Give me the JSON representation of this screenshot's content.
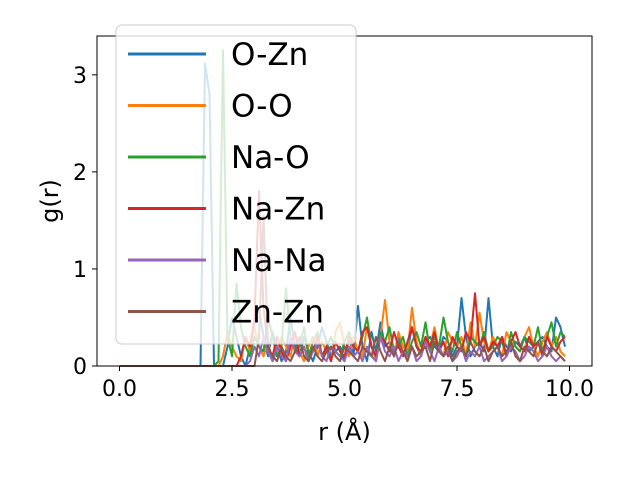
{
  "chart_data": {
    "type": "line",
    "title": "",
    "xlabel": "r (Å)",
    "ylabel": "g(r)",
    "xlim": [
      -0.5,
      10.5
    ],
    "ylim": [
      0,
      3.4
    ],
    "xticks": [
      0.0,
      2.5,
      5.0,
      7.5,
      10.0
    ],
    "xtick_labels": [
      "0.0",
      "2.5",
      "5.0",
      "7.5",
      "10.0"
    ],
    "yticks": [
      0,
      1,
      2,
      3
    ],
    "ytick_labels": [
      "0",
      "1",
      "2",
      "3"
    ],
    "grid": false,
    "legend_position": "top-left",
    "x": [
      0.0,
      0.1,
      0.2,
      0.3,
      0.4,
      0.5,
      0.6,
      0.7,
      0.8,
      0.9,
      1.0,
      1.1,
      1.2,
      1.3,
      1.4,
      1.5,
      1.6,
      1.7,
      1.8,
      1.9,
      2.0,
      2.1,
      2.2,
      2.3,
      2.4,
      2.5,
      2.6,
      2.7,
      2.8,
      2.9,
      3.0,
      3.1,
      3.2,
      3.3,
      3.4,
      3.5,
      3.6,
      3.7,
      3.8,
      3.9,
      4.0,
      4.1,
      4.2,
      4.3,
      4.4,
      4.5,
      4.6,
      4.7,
      4.8,
      4.9,
      5.0,
      5.1,
      5.2,
      5.3,
      5.4,
      5.5,
      5.6,
      5.7,
      5.8,
      5.9,
      6.0,
      6.1,
      6.2,
      6.3,
      6.4,
      6.5,
      6.6,
      6.7,
      6.8,
      6.9,
      7.0,
      7.1,
      7.2,
      7.3,
      7.4,
      7.5,
      7.6,
      7.7,
      7.8,
      7.9,
      8.0,
      8.1,
      8.2,
      8.3,
      8.4,
      8.5,
      8.6,
      8.7,
      8.8,
      8.9,
      9.0,
      9.1,
      9.2,
      9.3,
      9.4,
      9.5,
      9.6,
      9.7,
      9.8,
      9.9
    ],
    "series": [
      {
        "name": "O-Zn",
        "color": "#1f77b4",
        "values": [
          0,
          0,
          0,
          0,
          0,
          0,
          0,
          0,
          0,
          0,
          0,
          0,
          0,
          0,
          0,
          0,
          0,
          0,
          0,
          3.12,
          2.8,
          0,
          0,
          0,
          0.2,
          0.5,
          0.3,
          0.1,
          0,
          0.2,
          0.45,
          0.6,
          0.3,
          0.1,
          0.35,
          0.2,
          0.05,
          0.15,
          0.5,
          0.2,
          0.1,
          0.3,
          0.15,
          0.05,
          0.2,
          0.4,
          0.25,
          0.1,
          0.15,
          0.2,
          0.05,
          0.3,
          0.1,
          0.62,
          0.2,
          0.05,
          0.35,
          0.15,
          0.45,
          0.2,
          0.25,
          0.1,
          0.3,
          0.2,
          0.15,
          0.4,
          0.2,
          0.1,
          0.25,
          0.3,
          0.2,
          0.15,
          0.3,
          0.25,
          0.1,
          0.2,
          0.7,
          0.3,
          0.1,
          0.2,
          0.25,
          0.15,
          0.7,
          0.2,
          0.1,
          0.3,
          0.2,
          0.15,
          0.25,
          0.2,
          0.3,
          0.15,
          0.2,
          0.25,
          0.3,
          0.2,
          0.15,
          0.5,
          0.4,
          0.2
        ]
      },
      {
        "name": "O-O",
        "color": "#ff7f0e",
        "values": [
          0,
          0,
          0,
          0,
          0,
          0,
          0,
          0,
          0,
          0,
          0,
          0,
          0,
          0,
          0,
          0,
          0,
          0,
          0,
          0,
          0,
          0,
          0,
          0.1,
          0.35,
          0.2,
          0.1,
          0.05,
          0.3,
          0.15,
          0.4,
          0.2,
          0.1,
          0.25,
          0.05,
          0.15,
          0.3,
          0.2,
          0.1,
          0.35,
          0.15,
          0.05,
          0.2,
          0.3,
          0.1,
          0.25,
          0.15,
          0.05,
          0.35,
          0.45,
          0.2,
          0.1,
          0.3,
          0.15,
          0.1,
          0.4,
          0.2,
          0.05,
          0.3,
          0.68,
          0.25,
          0.1,
          0.35,
          0.2,
          0.15,
          0.6,
          0.25,
          0.1,
          0.3,
          0.2,
          0.4,
          0.15,
          0.1,
          0.35,
          0.25,
          0.2,
          0.3,
          0.1,
          0.45,
          0.2,
          0.55,
          0.25,
          0.15,
          0.3,
          0.2,
          0.1,
          0.35,
          0.25,
          0.2,
          0.15,
          0.3,
          0.4,
          0.2,
          0.1,
          0.25,
          0.35,
          0.2,
          0.3,
          0.15,
          0.1
        ]
      },
      {
        "name": "Na-O",
        "color": "#2ca02c",
        "values": [
          0,
          0,
          0,
          0,
          0,
          0,
          0,
          0,
          0,
          0,
          0,
          0,
          0,
          0,
          0,
          0,
          0,
          0,
          0,
          0,
          0,
          0,
          0.05,
          3.25,
          0.3,
          0.1,
          0.85,
          0.4,
          0.2,
          0.1,
          0.3,
          0.2,
          0.15,
          0.5,
          0.3,
          0.1,
          0.2,
          0.8,
          0.3,
          0.15,
          0.2,
          0.4,
          0.1,
          0.25,
          0.35,
          0.1,
          0.2,
          0.3,
          0.15,
          0.1,
          0.25,
          0.35,
          0.2,
          0.15,
          0.3,
          0.5,
          0.2,
          0.1,
          0.35,
          0.25,
          0.4,
          0.15,
          0.2,
          0.3,
          0.1,
          0.25,
          0.35,
          0.2,
          0.45,
          0.15,
          0.3,
          0.2,
          0.5,
          0.25,
          0.15,
          0.35,
          0.2,
          0.1,
          0.3,
          0.25,
          0.2,
          0.35,
          0.15,
          0.2,
          0.3,
          0.25,
          0.1,
          0.35,
          0.2,
          0.15,
          0.3,
          0.25,
          0.2,
          0.4,
          0.15,
          0.3,
          0.45,
          0.2,
          0.35,
          0.3
        ]
      },
      {
        "name": "Na-Zn",
        "color": "#d62728",
        "values": [
          0,
          0,
          0,
          0,
          0,
          0,
          0,
          0,
          0,
          0,
          0,
          0,
          0,
          0,
          0,
          0,
          0,
          0,
          0,
          0,
          0,
          0,
          0,
          0,
          0,
          0,
          0,
          0.1,
          0.3,
          0.2,
          0.5,
          1.8,
          0.6,
          0.2,
          0.1,
          0.3,
          0.15,
          0.05,
          0.2,
          0.35,
          0.1,
          0.2,
          0.05,
          0.15,
          0.3,
          0.1,
          0.2,
          0.05,
          0.25,
          0.15,
          0.1,
          0.3,
          0.2,
          0.15,
          0.35,
          0.4,
          0.2,
          0.1,
          0.3,
          0.25,
          0.15,
          0.35,
          0.2,
          0.1,
          0.25,
          0.4,
          0.2,
          0.15,
          0.3,
          0.2,
          0.35,
          0.15,
          0.25,
          0.1,
          0.3,
          0.2,
          0.15,
          0.35,
          0.25,
          0.75,
          0.2,
          0.3,
          0.15,
          0.25,
          0.2,
          0.3,
          0.1,
          0.25,
          0.35,
          0.2,
          0.15,
          0.3,
          0.2,
          0.25,
          0.1,
          0.3,
          0.2,
          0.15,
          0.25,
          0.3
        ]
      },
      {
        "name": "Na-Na",
        "color": "#9467bd",
        "values": [
          0,
          0,
          0,
          0,
          0,
          0,
          0,
          0,
          0,
          0,
          0,
          0,
          0,
          0,
          0,
          0,
          0,
          0,
          0,
          0,
          0,
          0,
          0,
          0,
          0,
          0,
          0,
          0,
          0,
          0.05,
          0.2,
          0.1,
          0.3,
          0.15,
          0.05,
          0.2,
          0.1,
          0.05,
          0.3,
          0.15,
          0.1,
          0.2,
          0.05,
          0.15,
          0.25,
          0.1,
          0.05,
          0.2,
          0.15,
          0.1,
          0.05,
          0.2,
          0.1,
          0.15,
          0.05,
          0.2,
          0.1,
          0.05,
          0.3,
          0.15,
          0.1,
          0.2,
          0.05,
          0.15,
          0.1,
          0.2,
          0.05,
          0.1,
          0.25,
          0.15,
          0.05,
          0.2,
          0.1,
          0.15,
          0.05,
          0.1,
          0.2,
          0.05,
          0.15,
          0.1,
          0.2,
          0.05,
          0.1,
          0.15,
          0.2,
          0.05,
          0.1,
          0.2,
          0.15,
          0.05,
          0.1,
          0.2,
          0.15,
          0.05,
          0.1,
          0.2,
          0.1,
          0.05,
          0.1,
          0.05
        ]
      },
      {
        "name": "Zn-Zn",
        "color": "#8c564b",
        "values": [
          0,
          0,
          0,
          0,
          0,
          0,
          0,
          0,
          0,
          0,
          0,
          0,
          0,
          0,
          0,
          0,
          0,
          0,
          0,
          0,
          0,
          0,
          0,
          0,
          0,
          0,
          0,
          0,
          0,
          0,
          0,
          0.3,
          1.55,
          0.2,
          0.1,
          0.05,
          0.2,
          0.1,
          0.05,
          0.15,
          0.3,
          0.1,
          0.05,
          0.2,
          0.1,
          0.05,
          0.15,
          0.2,
          0.1,
          0.05,
          0.2,
          0.15,
          0.1,
          0.05,
          0.2,
          0.15,
          0.1,
          0.3,
          0.15,
          0.05,
          0.2,
          0.1,
          0.25,
          0.15,
          0.05,
          0.2,
          0.1,
          0.15,
          0.2,
          0.05,
          0.25,
          0.15,
          0.1,
          0.2,
          0.05,
          0.15,
          0.2,
          0.1,
          0.25,
          0.15,
          0.1,
          0.2,
          0.05,
          0.15,
          0.2,
          0.1,
          0.15,
          0.25,
          0.1,
          0.05,
          0.2,
          0.15,
          0.1,
          0.25,
          0.15,
          0.1,
          0.2,
          0.15,
          0.1,
          0.05
        ]
      }
    ]
  }
}
